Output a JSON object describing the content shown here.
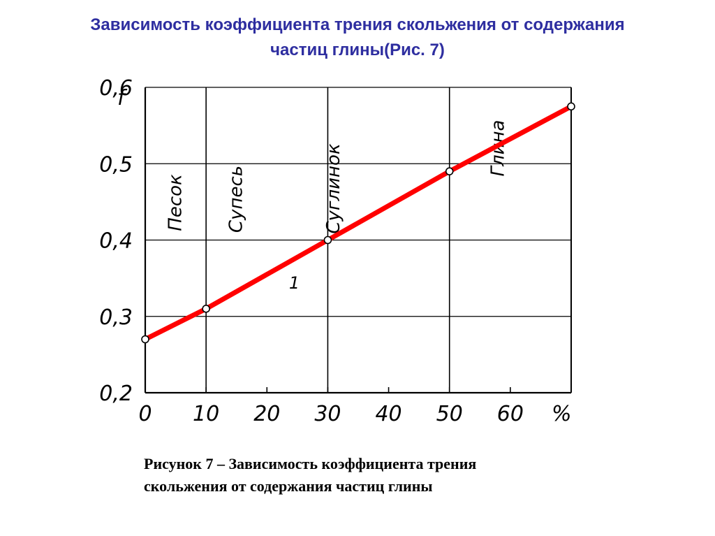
{
  "title": {
    "line1": "Зависимость коэффициента трения скольжения от содержания",
    "line2": "частиц глины(Рис. 7)"
  },
  "caption": {
    "line1": "Рисунок 7 – Зависимость коэффициента трения",
    "line2": "скольжения от содержания частиц глины"
  },
  "colors": {
    "title": "#2e2ea0",
    "line": "#ff0000",
    "axis": "#000000"
  },
  "chart_data": {
    "type": "line",
    "ylabel": "f",
    "x_unit_label": "%",
    "xlim": [
      0,
      70
    ],
    "ylim": [
      0.2,
      0.6
    ],
    "x_ticks": [
      0,
      10,
      20,
      30,
      40,
      50,
      60
    ],
    "x_tick_labels": [
      "0",
      "10",
      "20",
      "30",
      "40",
      "50",
      "60"
    ],
    "y_ticks": [
      0.2,
      0.3,
      0.4,
      0.5,
      0.6
    ],
    "y_tick_labels": [
      "0,2",
      "0,3",
      "0,4",
      "0,5",
      "0,6"
    ],
    "grid": true,
    "zone_boundaries": [
      10,
      30,
      50
    ],
    "zones": [
      {
        "label": "Песок",
        "x_center": 5
      },
      {
        "label": "Супесь",
        "x_center": 15
      },
      {
        "label": "Суглинок",
        "x_center": 31
      },
      {
        "label": "Глина",
        "x_center": 58
      }
    ],
    "series": [
      {
        "name": "1",
        "x": [
          0,
          10,
          30,
          50,
          70
        ],
        "y": [
          0.27,
          0.31,
          0.4,
          0.49,
          0.575
        ]
      }
    ]
  }
}
